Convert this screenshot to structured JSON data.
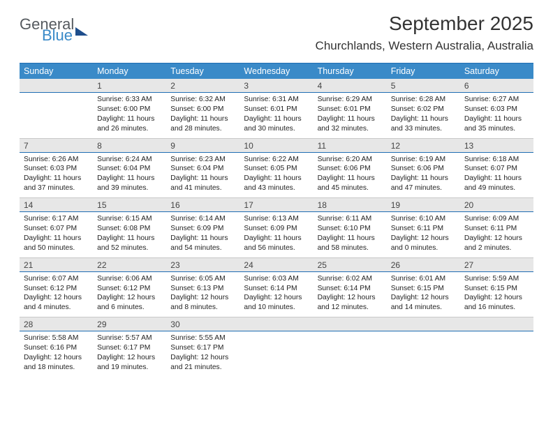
{
  "logo": {
    "line1": "General",
    "line2": "Blue"
  },
  "title": "September 2025",
  "location": "Churchlands, Western Australia, Australia",
  "colors": {
    "header_bg": "#3a8ac8",
    "header_rule": "#1f6db3",
    "daynum_bg": "#e7e7e7",
    "text": "#222222"
  },
  "day_headers": [
    "Sunday",
    "Monday",
    "Tuesday",
    "Wednesday",
    "Thursday",
    "Friday",
    "Saturday"
  ],
  "weeks": [
    {
      "nums": [
        "",
        "1",
        "2",
        "3",
        "4",
        "5",
        "6"
      ],
      "cells": [
        {
          "sr": "",
          "ss": "",
          "dl": ""
        },
        {
          "sr": "Sunrise: 6:33 AM",
          "ss": "Sunset: 6:00 PM",
          "dl": "Daylight: 11 hours and 26 minutes."
        },
        {
          "sr": "Sunrise: 6:32 AM",
          "ss": "Sunset: 6:00 PM",
          "dl": "Daylight: 11 hours and 28 minutes."
        },
        {
          "sr": "Sunrise: 6:31 AM",
          "ss": "Sunset: 6:01 PM",
          "dl": "Daylight: 11 hours and 30 minutes."
        },
        {
          "sr": "Sunrise: 6:29 AM",
          "ss": "Sunset: 6:01 PM",
          "dl": "Daylight: 11 hours and 32 minutes."
        },
        {
          "sr": "Sunrise: 6:28 AM",
          "ss": "Sunset: 6:02 PM",
          "dl": "Daylight: 11 hours and 33 minutes."
        },
        {
          "sr": "Sunrise: 6:27 AM",
          "ss": "Sunset: 6:03 PM",
          "dl": "Daylight: 11 hours and 35 minutes."
        }
      ]
    },
    {
      "nums": [
        "7",
        "8",
        "9",
        "10",
        "11",
        "12",
        "13"
      ],
      "cells": [
        {
          "sr": "Sunrise: 6:26 AM",
          "ss": "Sunset: 6:03 PM",
          "dl": "Daylight: 11 hours and 37 minutes."
        },
        {
          "sr": "Sunrise: 6:24 AM",
          "ss": "Sunset: 6:04 PM",
          "dl": "Daylight: 11 hours and 39 minutes."
        },
        {
          "sr": "Sunrise: 6:23 AM",
          "ss": "Sunset: 6:04 PM",
          "dl": "Daylight: 11 hours and 41 minutes."
        },
        {
          "sr": "Sunrise: 6:22 AM",
          "ss": "Sunset: 6:05 PM",
          "dl": "Daylight: 11 hours and 43 minutes."
        },
        {
          "sr": "Sunrise: 6:20 AM",
          "ss": "Sunset: 6:06 PM",
          "dl": "Daylight: 11 hours and 45 minutes."
        },
        {
          "sr": "Sunrise: 6:19 AM",
          "ss": "Sunset: 6:06 PM",
          "dl": "Daylight: 11 hours and 47 minutes."
        },
        {
          "sr": "Sunrise: 6:18 AM",
          "ss": "Sunset: 6:07 PM",
          "dl": "Daylight: 11 hours and 49 minutes."
        }
      ]
    },
    {
      "nums": [
        "14",
        "15",
        "16",
        "17",
        "18",
        "19",
        "20"
      ],
      "cells": [
        {
          "sr": "Sunrise: 6:17 AM",
          "ss": "Sunset: 6:07 PM",
          "dl": "Daylight: 11 hours and 50 minutes."
        },
        {
          "sr": "Sunrise: 6:15 AM",
          "ss": "Sunset: 6:08 PM",
          "dl": "Daylight: 11 hours and 52 minutes."
        },
        {
          "sr": "Sunrise: 6:14 AM",
          "ss": "Sunset: 6:09 PM",
          "dl": "Daylight: 11 hours and 54 minutes."
        },
        {
          "sr": "Sunrise: 6:13 AM",
          "ss": "Sunset: 6:09 PM",
          "dl": "Daylight: 11 hours and 56 minutes."
        },
        {
          "sr": "Sunrise: 6:11 AM",
          "ss": "Sunset: 6:10 PM",
          "dl": "Daylight: 11 hours and 58 minutes."
        },
        {
          "sr": "Sunrise: 6:10 AM",
          "ss": "Sunset: 6:11 PM",
          "dl": "Daylight: 12 hours and 0 minutes."
        },
        {
          "sr": "Sunrise: 6:09 AM",
          "ss": "Sunset: 6:11 PM",
          "dl": "Daylight: 12 hours and 2 minutes."
        }
      ]
    },
    {
      "nums": [
        "21",
        "22",
        "23",
        "24",
        "25",
        "26",
        "27"
      ],
      "cells": [
        {
          "sr": "Sunrise: 6:07 AM",
          "ss": "Sunset: 6:12 PM",
          "dl": "Daylight: 12 hours and 4 minutes."
        },
        {
          "sr": "Sunrise: 6:06 AM",
          "ss": "Sunset: 6:12 PM",
          "dl": "Daylight: 12 hours and 6 minutes."
        },
        {
          "sr": "Sunrise: 6:05 AM",
          "ss": "Sunset: 6:13 PM",
          "dl": "Daylight: 12 hours and 8 minutes."
        },
        {
          "sr": "Sunrise: 6:03 AM",
          "ss": "Sunset: 6:14 PM",
          "dl": "Daylight: 12 hours and 10 minutes."
        },
        {
          "sr": "Sunrise: 6:02 AM",
          "ss": "Sunset: 6:14 PM",
          "dl": "Daylight: 12 hours and 12 minutes."
        },
        {
          "sr": "Sunrise: 6:01 AM",
          "ss": "Sunset: 6:15 PM",
          "dl": "Daylight: 12 hours and 14 minutes."
        },
        {
          "sr": "Sunrise: 5:59 AM",
          "ss": "Sunset: 6:15 PM",
          "dl": "Daylight: 12 hours and 16 minutes."
        }
      ]
    },
    {
      "nums": [
        "28",
        "29",
        "30",
        "",
        "",
        "",
        ""
      ],
      "cells": [
        {
          "sr": "Sunrise: 5:58 AM",
          "ss": "Sunset: 6:16 PM",
          "dl": "Daylight: 12 hours and 18 minutes."
        },
        {
          "sr": "Sunrise: 5:57 AM",
          "ss": "Sunset: 6:17 PM",
          "dl": "Daylight: 12 hours and 19 minutes."
        },
        {
          "sr": "Sunrise: 5:55 AM",
          "ss": "Sunset: 6:17 PM",
          "dl": "Daylight: 12 hours and 21 minutes."
        },
        {
          "sr": "",
          "ss": "",
          "dl": ""
        },
        {
          "sr": "",
          "ss": "",
          "dl": ""
        },
        {
          "sr": "",
          "ss": "",
          "dl": ""
        },
        {
          "sr": "",
          "ss": "",
          "dl": ""
        }
      ]
    }
  ]
}
